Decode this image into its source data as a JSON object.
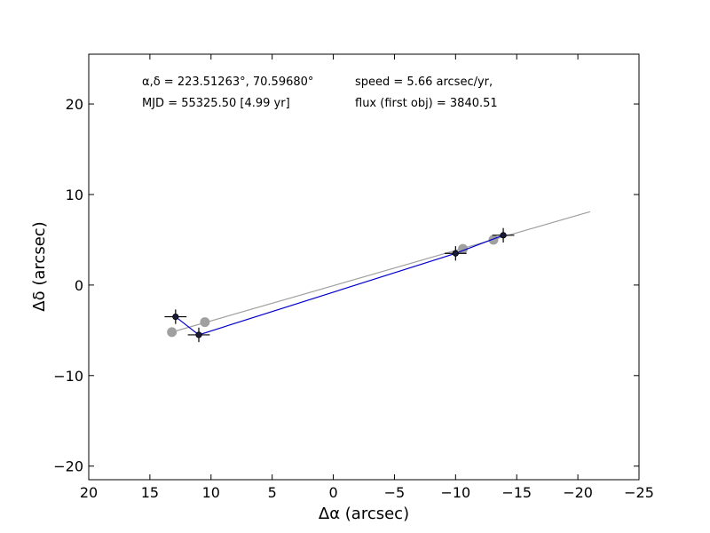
{
  "chart_data": {
    "type": "scatter",
    "title": "",
    "xlabel": "Δα (arcsec)",
    "ylabel": "Δδ (arcsec)",
    "xlim": [
      20,
      -25
    ],
    "ylim": [
      -21.5,
      25.5
    ],
    "x_ticks": [
      20,
      15,
      10,
      5,
      0,
      -5,
      -10,
      -15,
      -20,
      -25
    ],
    "y_ticks": [
      -20,
      -10,
      0,
      10,
      20
    ],
    "x_tick_labels": [
      "20",
      "15",
      "10",
      "5",
      "0",
      "−5",
      "−10",
      "−15",
      "−20",
      "−25"
    ],
    "y_tick_labels": [
      "−20",
      "−10",
      "0",
      "10",
      "20"
    ],
    "grid": false,
    "annotations": {
      "coords": "α,δ = 223.51263°, 70.59680°",
      "speed": "speed = 5.66 arcsec/yr,",
      "mjd": "MJD = 55325.50 [4.99 yr]",
      "flux": "flux (first obj) = 3840.51"
    },
    "observed": {
      "color": "#000000",
      "line_color": "#0000cc",
      "points": [
        {
          "x": 12.9,
          "y": -3.5,
          "xerr": 0.9,
          "yerr": 0.8
        },
        {
          "x": 11.0,
          "y": -5.5,
          "xerr": 0.9,
          "yerr": 0.8
        },
        {
          "x": -10.0,
          "y": 3.5,
          "xerr": 0.9,
          "yerr": 0.8
        },
        {
          "x": -13.9,
          "y": 5.5,
          "xerr": 0.9,
          "yerr": 0.8
        }
      ]
    },
    "predicted": {
      "color": "#a0a0a0",
      "points": [
        {
          "x": 13.2,
          "y": -5.2
        },
        {
          "x": 10.5,
          "y": -4.1
        },
        {
          "x": -10.6,
          "y": 4.0
        },
        {
          "x": -13.1,
          "y": 5.0
        }
      ]
    },
    "trend_line": {
      "color": "#a0a0a0",
      "x": [
        13.2,
        -21.0
      ],
      "y": [
        -5.2,
        8.1
      ]
    }
  }
}
